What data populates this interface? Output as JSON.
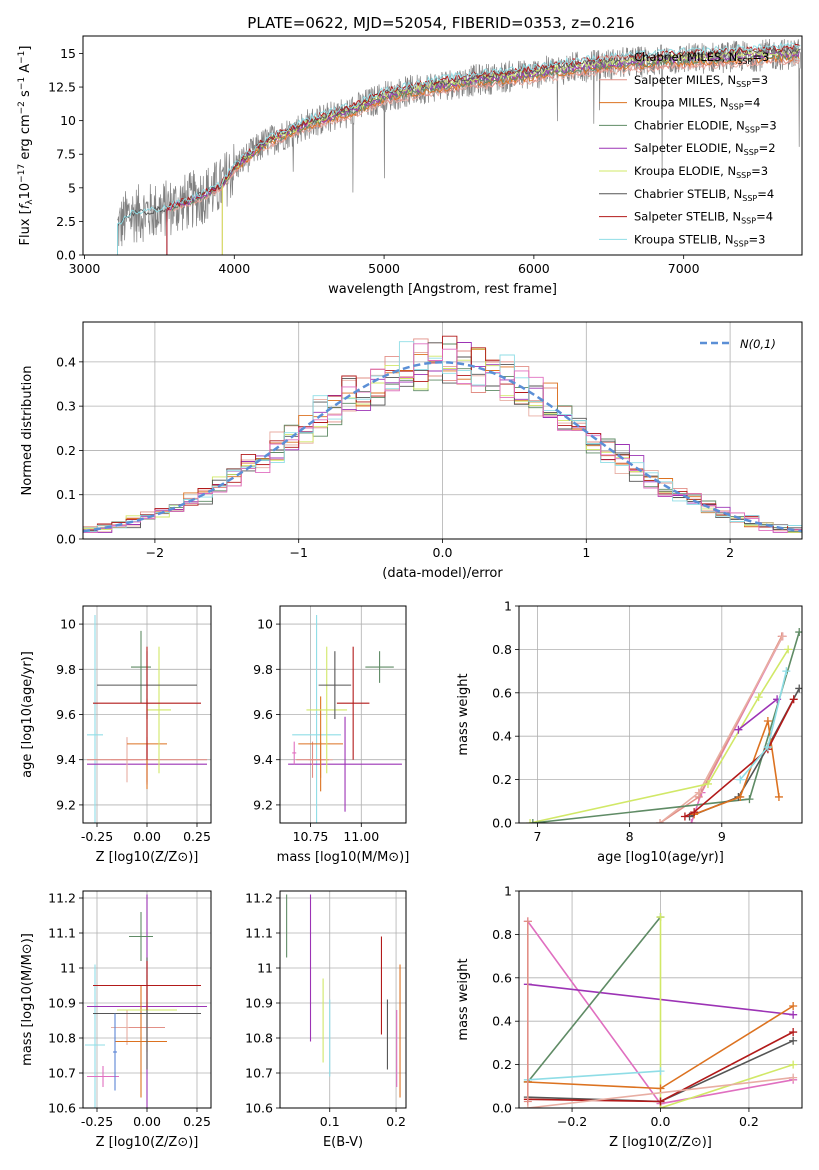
{
  "figure_title": "PLATE=0622, MJD=52054, FIBERID=0353, z=0.216",
  "models": [
    {
      "name": "Chabrier MILES, N$_{SSP}$=3",
      "label": "Chabrier MILES, N",
      "sub": "SSP",
      "post": "=3",
      "color": "#e8aea3"
    },
    {
      "name": "Salpeter MILES, N$_{SSP}$=3",
      "label": "Salpeter MILES, N",
      "sub": "SSP",
      "post": "=3",
      "color": "#e28f86"
    },
    {
      "name": "Kroupa MILES, N$_{SSP}$=4",
      "label": "Kroupa MILES, N",
      "sub": "SSP",
      "post": "=4",
      "color": "#dc7220"
    },
    {
      "name": "Chabrier ELODIE, N$_{SSP}$=3",
      "label": "Chabrier ELODIE, N",
      "sub": "SSP",
      "post": "=3",
      "color": "#5f8b65"
    },
    {
      "name": "Salpeter ELODIE, N$_{SSP}$=2",
      "label": "Salpeter ELODIE, N",
      "sub": "SSP",
      "post": "=2",
      "color": "#9c33b5"
    },
    {
      "name": "Kroupa ELODIE, N$_{SSP}$=3",
      "label": "Kroupa ELODIE, N",
      "sub": "SSP",
      "post": "=3",
      "color": "#d1e867"
    },
    {
      "name": "Chabrier STELIB, N$_{SSP}$=4",
      "label": "Chabrier STELIB, N",
      "sub": "SSP",
      "post": "=4",
      "color": "#555555"
    },
    {
      "name": "Salpeter STELIB, N$_{SSP}$=4",
      "label": "Salpeter STELIB, N",
      "sub": "SSP",
      "post": "=4",
      "color": "#b21a1a"
    },
    {
      "name": "Kroupa STELIB, N$_{SSP}$=3",
      "label": "Kroupa STELIB, N",
      "sub": "SSP",
      "post": "=3",
      "color": "#8fdde6"
    }
  ],
  "chart_data": [
    {
      "id": "spectrum",
      "type": "line",
      "xlabel": "wavelength [Angstrom, rest frame]",
      "ylabel": "Flux [f_λ 10^-17 erg cm^-2 s^-1 A^-1]",
      "xlim": [
        2990,
        7790
      ],
      "ylim": [
        0,
        16.3
      ],
      "xticks": [
        3000,
        4000,
        5000,
        6000,
        7000
      ],
      "yticks": [
        0.0,
        2.5,
        5.0,
        7.5,
        10.0,
        12.5,
        15.0
      ],
      "grid": false,
      "legend": "right",
      "data_color": "#808080",
      "data_range": [
        3220,
        7780
      ],
      "continuum": [
        [
          3220,
          2.0
        ],
        [
          3300,
          3.0
        ],
        [
          3500,
          3.3
        ],
        [
          3700,
          4.0
        ],
        [
          3900,
          5.0
        ],
        [
          4000,
          6.5
        ],
        [
          4200,
          8.3
        ],
        [
          4500,
          9.8
        ],
        [
          4800,
          10.8
        ],
        [
          5000,
          11.8
        ],
        [
          5300,
          12.5
        ],
        [
          5600,
          13.0
        ],
        [
          6000,
          13.5
        ],
        [
          6300,
          14.0
        ],
        [
          6600,
          14.3
        ],
        [
          7000,
          14.6
        ],
        [
          7400,
          14.8
        ],
        [
          7780,
          15.0
        ]
      ],
      "model_starts": [
        3550,
        3550,
        3920,
        3550,
        3550,
        3920,
        3220,
        3550,
        3220
      ]
    },
    {
      "id": "residuals",
      "type": "histogram",
      "xlabel": "(data-model)/error",
      "ylabel": "Normed distribution",
      "xlim": [
        -2.5,
        2.5
      ],
      "ylim": [
        0,
        0.49
      ],
      "xticks": [
        -2,
        -1,
        0,
        1,
        2
      ],
      "yticks": [
        0.0,
        0.1,
        0.2,
        0.3,
        0.4
      ],
      "grid": true,
      "legend": "top-right",
      "reference_curve": {
        "label": "N(0,1)",
        "mean": 0,
        "sigma": 1,
        "color": "#5b8fd6"
      },
      "bins": {
        "start": -2.5,
        "width": 0.1,
        "count": 50
      }
    },
    {
      "id": "Z_vs_age",
      "type": "errorbar",
      "xlabel": "Z [log10(Z/Z⊙)]",
      "ylabel": "age [log10(age/yr)]",
      "xlim": [
        -0.32,
        0.32
      ],
      "ylim": [
        9.12,
        10.08
      ],
      "xticks": [
        -0.25,
        0.0,
        0.25
      ],
      "xtick_labels": [
        "-0.25",
        "0.00",
        "0.25"
      ],
      "yticks": [
        9.2,
        9.4,
        9.6,
        9.8,
        10.0
      ],
      "grid": true,
      "points": [
        {
          "model": 8,
          "x": -0.26,
          "xerr": 0.04,
          "y": 9.51,
          "yerr": 0.53
        },
        {
          "model": 4,
          "x": 0.0,
          "xerr": 0.3,
          "y": 9.38,
          "yerr": 0.09
        },
        {
          "model": 0,
          "x": -0.1,
          "xerr": 0.08,
          "y": 9.4,
          "yerr": 0.1
        },
        {
          "model": 1,
          "x": 0.0,
          "xerr": 0.3,
          "y": 9.4,
          "yerr": 0.1
        },
        {
          "model": 2,
          "x": 0.0,
          "xerr": 0.1,
          "y": 9.47,
          "yerr": 0.2
        },
        {
          "model": 3,
          "x": -0.03,
          "xerr": 0.05,
          "y": 9.81,
          "yerr": 0.16
        },
        {
          "model": 5,
          "x": 0.06,
          "xerr": 0.06,
          "y": 9.62,
          "yerr": 0.28
        },
        {
          "model": 6,
          "x": 0.0,
          "xerr": 0.25,
          "y": 9.73,
          "yerr": 0.15
        },
        {
          "model": 7,
          "x": 0.0,
          "xerr": 0.27,
          "y": 9.65,
          "yerr": 0.25
        }
      ]
    },
    {
      "id": "mass_vs_age",
      "type": "errorbar",
      "xlabel": "mass [log10(M/M⊙)]",
      "ylabel": "",
      "xlim": [
        10.6,
        11.22
      ],
      "ylim": [
        9.12,
        10.08
      ],
      "xticks": [
        10.75,
        11.0
      ],
      "xtick_labels": [
        "10.75",
        "11.00"
      ],
      "yticks": [
        9.2,
        9.4,
        9.6,
        9.8,
        10.0
      ],
      "grid": true,
      "points": [
        {
          "model": 8,
          "x": 10.78,
          "xerr": 0.12,
          "y": 9.51,
          "yerr": 0.53
        },
        {
          "model": 4,
          "x": 10.92,
          "xerr": 0.28,
          "y": 9.38,
          "yerr": 0.21
        },
        {
          "model": 0,
          "x": 10.8,
          "xerr": 0.06,
          "y": 9.4,
          "yerr": 0.08
        },
        {
          "model": 1,
          "x": 10.76,
          "xerr": 0.08,
          "y": 9.4,
          "yerr": 0.08
        },
        {
          "model": 2,
          "x": 10.8,
          "xerr": 0.11,
          "y": 9.47,
          "yerr": 0.21
        },
        {
          "model": 3,
          "x": 11.09,
          "xerr": 0.07,
          "y": 9.81,
          "yerr": 0.07
        },
        {
          "model": 5,
          "x": 10.83,
          "xerr": 0.1,
          "y": 9.62,
          "yerr": 0.28
        },
        {
          "model": 6,
          "x": 10.87,
          "xerr": 0.08,
          "y": 9.73,
          "yerr": 0.15
        },
        {
          "model": 7,
          "x": 10.96,
          "xerr": 0.08,
          "y": 9.65,
          "yerr": 0.25
        },
        {
          "model": 9,
          "x": 10.67,
          "xerr": 0.01,
          "y": 9.43,
          "yerr": 0.05
        }
      ]
    },
    {
      "id": "age_vs_massweight",
      "type": "line",
      "xlabel": "age [log10(age/yr)]",
      "ylabel": "mass weight",
      "xlim": [
        6.8,
        9.87
      ],
      "ylim": [
        0,
        1.0
      ],
      "xticks": [
        7,
        8,
        9
      ],
      "yticks": [
        0.0,
        0.2,
        0.4,
        0.6,
        0.8,
        1.0
      ],
      "grid": true,
      "series": [
        {
          "model": 9,
          "points": [
            [
              8.67,
              0.0
            ],
            [
              8.78,
              0.14
            ],
            [
              9.66,
              0.86
            ]
          ]
        },
        {
          "model": 1,
          "points": [
            [
              8.33,
              0.0
            ],
            [
              8.75,
              0.12
            ],
            [
              9.65,
              0.86
            ]
          ]
        },
        {
          "model": 0,
          "points": [
            [
              8.33,
              0.0
            ],
            [
              8.75,
              0.14
            ],
            [
              9.66,
              0.86
            ]
          ]
        },
        {
          "model": 5,
          "points": [
            [
              6.92,
              0.0
            ],
            [
              8.85,
              0.18
            ],
            [
              9.4,
              0.58
            ],
            [
              9.72,
              0.8
            ]
          ]
        },
        {
          "model": 3,
          "points": [
            [
              6.95,
              0.0
            ],
            [
              9.3,
              0.11
            ],
            [
              9.84,
              0.88
            ]
          ]
        },
        {
          "model": 6,
          "points": [
            [
              8.65,
              0.03
            ],
            [
              9.18,
              0.12
            ],
            [
              9.5,
              0.35
            ],
            [
              9.84,
              0.62
            ]
          ]
        },
        {
          "model": 2,
          "points": [
            [
              8.7,
              0.04
            ],
            [
              9.2,
              0.12
            ],
            [
              9.5,
              0.47
            ],
            [
              9.62,
              0.12
            ]
          ]
        },
        {
          "model": 7,
          "points": [
            [
              8.6,
              0.03
            ],
            [
              8.7,
              0.05
            ],
            [
              9.5,
              0.34
            ],
            [
              9.78,
              0.57
            ]
          ]
        },
        {
          "model": 4,
          "points": [
            [
              9.18,
              0.43
            ],
            [
              9.6,
              0.57
            ]
          ]
        },
        {
          "model": 8,
          "points": [
            [
              9.2,
              0.2
            ],
            [
              9.5,
              0.35
            ],
            [
              9.7,
              0.7
            ]
          ]
        }
      ]
    },
    {
      "id": "Z_vs_mass",
      "type": "errorbar",
      "xlabel": "Z [log10(Z/Z⊙)]",
      "ylabel": "mass [log10(M/M⊙)]",
      "xlim": [
        -0.32,
        0.32
      ],
      "ylim": [
        10.6,
        11.22
      ],
      "xticks": [
        -0.25,
        0.0,
        0.25
      ],
      "xtick_labels": [
        "-0.25",
        "0.00",
        "0.25"
      ],
      "yticks": [
        10.6,
        10.7,
        10.8,
        10.9,
        11.0,
        11.1,
        11.2
      ],
      "grid": true,
      "points": [
        {
          "model": 8,
          "x": -0.26,
          "xerr": 0.05,
          "y": 10.78,
          "yerr": 0.23
        },
        {
          "model": 4,
          "x": 0.0,
          "xerr": 0.3,
          "y": 10.89,
          "yerr": 0.32
        },
        {
          "model": 0,
          "x": -0.1,
          "xerr": 0.08,
          "y": 10.83,
          "yerr": 0.05
        },
        {
          "model": 1,
          "x": 0.0,
          "xerr": 0.09,
          "y": 10.83,
          "yerr": 0.07
        },
        {
          "model": 2,
          "x": -0.03,
          "xerr": 0.13,
          "y": 10.79,
          "yerr": 0.16
        },
        {
          "model": 3,
          "x": -0.03,
          "xerr": 0.06,
          "y": 11.09,
          "yerr": 0.07
        },
        {
          "model": 5,
          "x": 0.0,
          "xerr": 0.15,
          "y": 10.88,
          "yerr": 0.1
        },
        {
          "model": 6,
          "x": 0.0,
          "xerr": 0.27,
          "y": 10.87,
          "yerr": 0.16
        },
        {
          "model": 7,
          "x": 0.0,
          "xerr": 0.27,
          "y": 10.95,
          "yerr": 0.07
        },
        {
          "model": 9,
          "x": -0.22,
          "xerr": 0.08,
          "y": 10.69,
          "yerr": 0.03
        },
        {
          "model": 10,
          "x": -0.16,
          "xerr": 0.01,
          "y": 10.76,
          "yerr": 0.11
        }
      ]
    },
    {
      "id": "EBV_vs_mass",
      "type": "errorbar",
      "xlabel": "E(B-V)",
      "ylabel": "",
      "xlim": [
        0.025,
        0.215
      ],
      "ylim": [
        10.6,
        11.22
      ],
      "xticks": [
        0.1,
        0.2
      ],
      "xtick_labels": [
        "0.1",
        "0.2"
      ],
      "yticks": [
        10.6,
        10.7,
        10.8,
        10.9,
        11.0,
        11.1,
        11.2
      ],
      "grid": true,
      "points": [
        {
          "model": 3,
          "x": 0.035,
          "yerr": 0.09,
          "y": 11.12
        },
        {
          "model": 4,
          "x": 0.071,
          "yerr": 0.21,
          "y": 11.0
        },
        {
          "model": 5,
          "x": 0.09,
          "yerr": 0.12,
          "y": 10.85
        },
        {
          "model": 8,
          "x": 0.1,
          "yerr": 0.11,
          "y": 10.8
        },
        {
          "model": 7,
          "x": 0.178,
          "yerr": 0.14,
          "y": 10.95
        },
        {
          "model": 6,
          "x": 0.187,
          "yerr": 0.1,
          "y": 10.81
        },
        {
          "model": 9,
          "x": 0.201,
          "yerr": 0.11,
          "y": 10.77
        },
        {
          "model": 2,
          "x": 0.206,
          "yerr": 0.19,
          "y": 10.82
        }
      ]
    },
    {
      "id": "Z_vs_massweight",
      "type": "line",
      "xlabel": "Z [log10(Z/Z⊙)]",
      "ylabel": "mass weight",
      "xlim": [
        -0.32,
        0.32
      ],
      "ylim": [
        0,
        1.0
      ],
      "xticks": [
        -0.2,
        0.0,
        0.2
      ],
      "xtick_labels": [
        "−0.2",
        "0.0",
        "0.2"
      ],
      "yticks": [
        0.0,
        0.2,
        0.4,
        0.6,
        0.8,
        1.0
      ],
      "grid": true,
      "series": [
        {
          "model": 9,
          "points": [
            [
              -0.3,
              0.86
            ],
            [
              0.0,
              0.02
            ],
            [
              0.3,
              0.13
            ]
          ]
        },
        {
          "model": 4,
          "points": [
            [
              -0.3,
              0.57
            ],
            [
              0.3,
              0.43
            ]
          ]
        },
        {
          "model": 3,
          "points": [
            [
              -0.3,
              0.12
            ],
            [
              0.0,
              0.88
            ]
          ]
        },
        {
          "model": 5,
          "points": [
            [
              0.0,
              0.88
            ],
            [
              0.0,
              0.0
            ],
            [
              0.3,
              0.2
            ]
          ]
        },
        {
          "model": 8,
          "points": [
            [
              -0.3,
              0.13
            ],
            [
              0.0,
              0.17
            ]
          ]
        },
        {
          "model": 2,
          "points": [
            [
              -0.3,
              0.12
            ],
            [
              0.0,
              0.09
            ],
            [
              0.3,
              0.47
            ]
          ]
        },
        {
          "model": 6,
          "points": [
            [
              -0.3,
              0.05
            ],
            [
              0.0,
              0.03
            ],
            [
              0.3,
              0.31
            ]
          ]
        },
        {
          "model": 7,
          "points": [
            [
              -0.3,
              0.04
            ],
            [
              0.0,
              0.03
            ],
            [
              0.3,
              0.35
            ]
          ]
        },
        {
          "model": 0,
          "points": [
            [
              -0.3,
              0.0
            ],
            [
              0.3,
              0.14
            ]
          ]
        },
        {
          "model": 1,
          "points": [
            [
              -0.3,
              0.86
            ],
            [
              -0.3,
              0.03
            ]
          ]
        }
      ]
    }
  ],
  "extra_colors": [
    "#e06fc0",
    "#5b84d6",
    "#4f6fd1"
  ]
}
